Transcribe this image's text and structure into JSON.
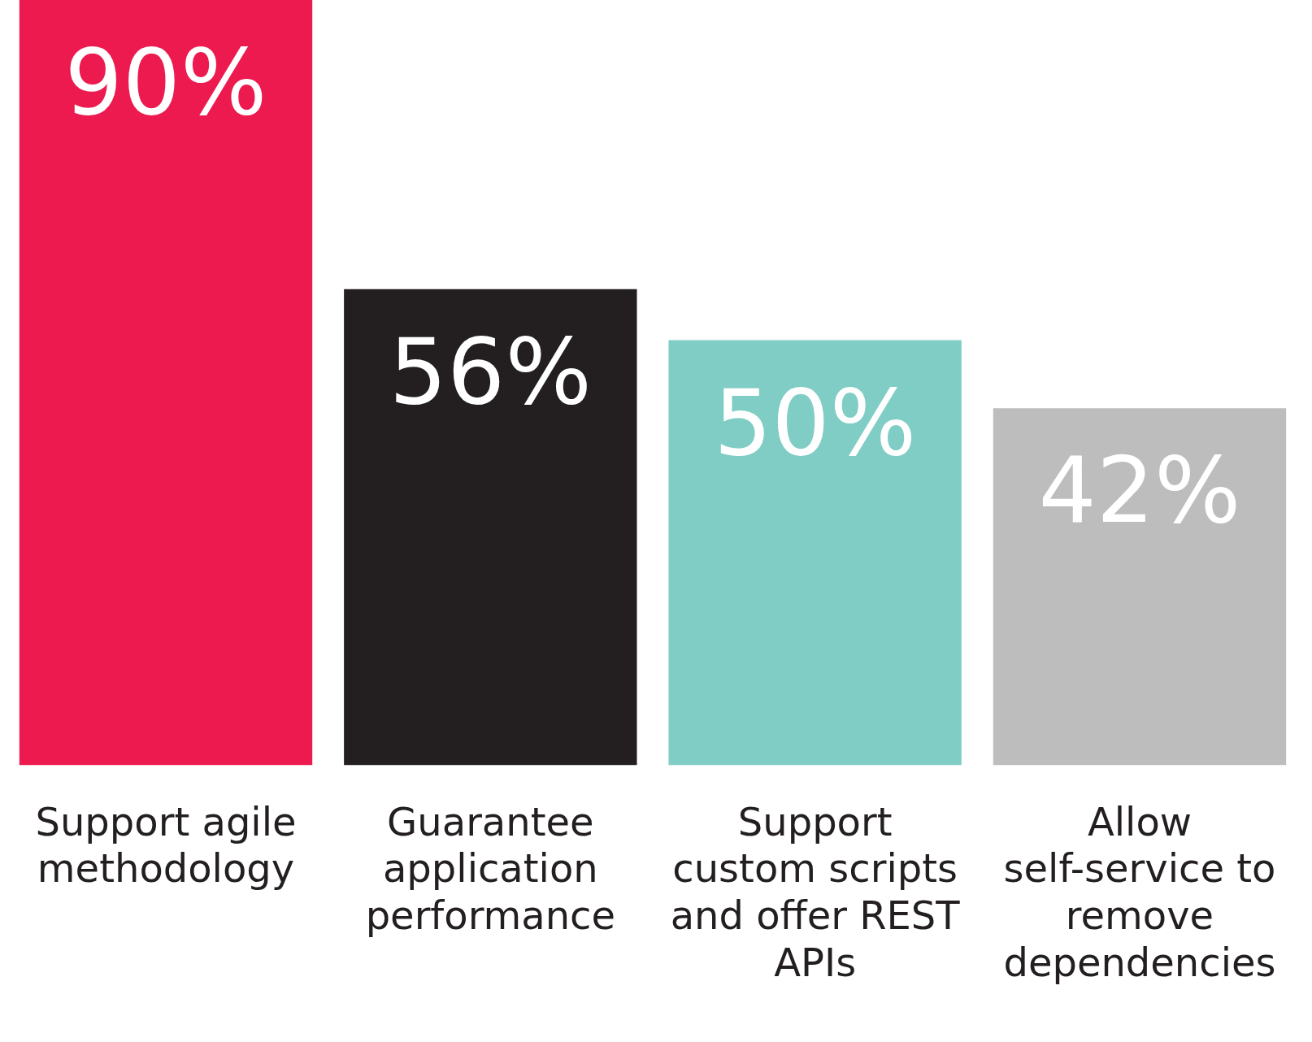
{
  "chart_data": {
    "type": "bar",
    "categories": [
      "Support agile methodology",
      "Guarantee application performance",
      "Support custom scripts and offer REST APIs",
      "Allow self-service to remove dependencies"
    ],
    "values": [
      90,
      56,
      50,
      42
    ],
    "colors": [
      "#ec1a4e",
      "#231f20",
      "#80cdc5",
      "#bdbdbe"
    ],
    "value_labels": [
      "90%",
      "56%",
      "50%",
      "42%"
    ],
    "grid": false,
    "legend": false
  }
}
